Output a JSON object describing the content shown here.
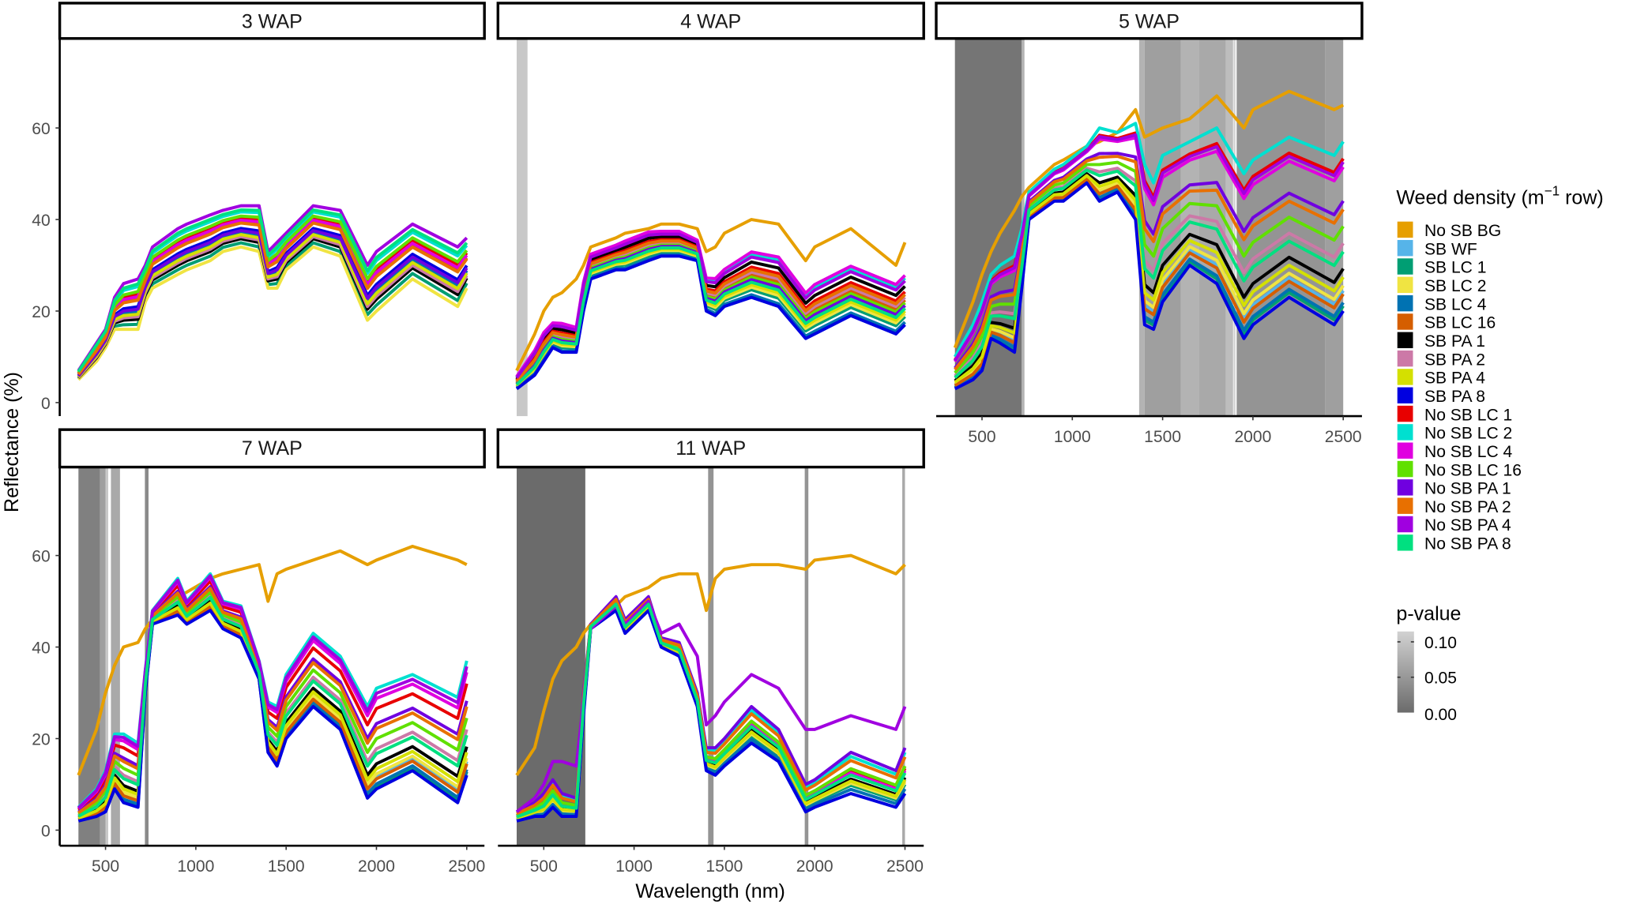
{
  "chart_data": {
    "type": "line",
    "title": "",
    "xlabel": "Wavelength (nm)",
    "ylabel": "Reflectance (%)",
    "xlim": [
      245,
      2605
    ],
    "ylim": [
      -3,
      79
    ],
    "x_ticks": [
      500,
      1000,
      1500,
      2000,
      2500
    ],
    "y_ticks": [
      0,
      20,
      40,
      60
    ],
    "grid": false,
    "legend_placement": "right",
    "legend": {
      "title_prefix": "Weed density (m",
      "title_sup": "−1",
      "title_suffix": " row)",
      "entries": [
        {
          "name": "No SB BG",
          "color": "#E69F00"
        },
        {
          "name": "SB WF",
          "color": "#56B4E9"
        },
        {
          "name": "SB LC 1",
          "color": "#009E73"
        },
        {
          "name": "SB LC 2",
          "color": "#F0E442"
        },
        {
          "name": "SB LC 4",
          "color": "#0072B2"
        },
        {
          "name": "SB LC 16",
          "color": "#D55E00"
        },
        {
          "name": "SB PA 1",
          "color": "#000000"
        },
        {
          "name": "SB PA 2",
          "color": "#CC79A7"
        },
        {
          "name": "SB PA 4",
          "color": "#D4E000"
        },
        {
          "name": "SB PA 8",
          "color": "#0000E0"
        },
        {
          "name": "No SB LC 1",
          "color": "#E80000"
        },
        {
          "name": "No SB LC 2",
          "color": "#00E0D0"
        },
        {
          "name": "No SB LC 4",
          "color": "#E000E0"
        },
        {
          "name": "No SB LC 16",
          "color": "#60E000"
        },
        {
          "name": "No SB PA 1",
          "color": "#7000E0"
        },
        {
          "name": "No SB PA 2",
          "color": "#E87000"
        },
        {
          "name": "No SB PA 4",
          "color": "#A000E0"
        },
        {
          "name": "No SB PA 8",
          "color": "#00E080"
        }
      ]
    },
    "pvalue_legend": {
      "title": "p-value",
      "labels": [
        "0.10",
        "0.05",
        "0.00"
      ],
      "range": [
        0,
        0.1
      ],
      "color_low": "#6b6b6b",
      "color_high": "#d2d2d2"
    },
    "wavelengths": [
      350,
      450,
      500,
      550,
      600,
      680,
      720,
      760,
      900,
      950,
      1080,
      1150,
      1250,
      1350,
      1400,
      1450,
      1500,
      1650,
      1800,
      1950,
      2000,
      2200,
      2450,
      2500
    ],
    "panels": [
      {
        "label": "3 WAP",
        "show_x_ticks": false,
        "bands": [],
        "envelope_low": [
          5,
          9,
          12,
          16,
          16,
          16,
          22,
          25,
          28,
          29,
          31,
          33,
          34,
          33,
          25,
          25,
          29,
          34,
          32,
          18,
          20,
          27,
          21,
          25
        ],
        "envelope_high": [
          7,
          13,
          16,
          23,
          26,
          27,
          30,
          34,
          38,
          39,
          41,
          42,
          43,
          43,
          33,
          35,
          37,
          43,
          42,
          30,
          33,
          39,
          34,
          36
        ],
        "explicit": {},
        "ranks": [
          0.6,
          0.3,
          0.1,
          0.0,
          0.35,
          0.6,
          0.2,
          0.25,
          0.3,
          0.45,
          0.7,
          0.85,
          0.65,
          0.75,
          0.4,
          0.58,
          1.0,
          0.9
        ]
      },
      {
        "label": "4 WAP",
        "show_x_ticks": false,
        "bands": [
          [
            350,
            410,
            0.09
          ]
        ],
        "envelope_low": [
          3,
          6,
          9,
          12,
          11,
          11,
          20,
          27,
          29,
          29,
          31,
          32,
          32,
          31,
          20,
          19,
          21,
          23,
          21,
          14,
          15,
          19,
          15,
          17
        ],
        "envelope_high": [
          6,
          12,
          16,
          18,
          18,
          17,
          27,
          33,
          35,
          36,
          38,
          38,
          38,
          36,
          28,
          28,
          30,
          34,
          33,
          25,
          27,
          31,
          27,
          29
        ],
        "explicit": {
          "No SB BG": [
            7,
            15,
            20,
            23,
            24,
            27,
            30,
            34,
            36,
            37,
            38,
            39,
            39,
            38,
            33,
            34,
            37,
            40,
            39,
            31,
            34,
            38,
            30,
            35
          ]
        },
        "ranks": [
          null,
          0.3,
          0.15,
          0.2,
          0.05,
          0.45,
          0.7,
          0.5,
          0.25,
          0.0,
          0.6,
          0.85,
          0.9,
          0.4,
          0.35,
          0.55,
          0.8,
          0.3
        ]
      },
      {
        "label": "5 WAP",
        "show_x_ticks": true,
        "bands": [
          [
            350,
            720,
            0.01
          ],
          [
            720,
            735,
            0.07
          ],
          [
            1370,
            1400,
            0.07
          ],
          [
            1400,
            1600,
            0.05
          ],
          [
            1600,
            1700,
            0.07
          ],
          [
            1700,
            1850,
            0.06
          ],
          [
            1850,
            1890,
            0.08
          ],
          [
            1893,
            1903,
            0.1
          ],
          [
            1910,
            2400,
            0.04
          ],
          [
            2400,
            2500,
            0.05
          ]
        ],
        "envelope_low": [
          3,
          5,
          7,
          14,
          13,
          11,
          25,
          40,
          44,
          44,
          48,
          44,
          46,
          40,
          17,
          16,
          22,
          30,
          26,
          14,
          17,
          23,
          17,
          20
        ],
        "envelope_high": [
          10,
          17,
          22,
          28,
          30,
          32,
          38,
          46,
          51,
          52,
          56,
          60,
          59,
          61,
          52,
          48,
          54,
          57,
          60,
          50,
          53,
          58,
          54,
          57
        ],
        "explicit": {
          "No SB BG": [
            12,
            22,
            28,
            33,
            37,
            42,
            45,
            47,
            52,
            53,
            56,
            57,
            59,
            64,
            58,
            59,
            60,
            62,
            67,
            60,
            64,
            68,
            64,
            65
          ]
        },
        "ranks": [
          null,
          0.12,
          0.03,
          0.15,
          0.05,
          0.1,
          0.25,
          0.4,
          0.2,
          0.0,
          0.9,
          1.0,
          0.85,
          0.5,
          0.65,
          0.6,
          0.88,
          0.35
        ]
      },
      {
        "label": "7 WAP",
        "show_x_ticks": true,
        "bands": [
          [
            350,
            470,
            0.02
          ],
          [
            470,
            500,
            0.05
          ],
          [
            500,
            515,
            0.09
          ],
          [
            530,
            580,
            0.06
          ],
          [
            718,
            738,
            0.03
          ]
        ],
        "envelope_low": [
          2,
          3,
          4,
          9,
          6,
          5,
          30,
          45,
          47,
          45,
          48,
          44,
          42,
          33,
          17,
          14,
          20,
          27,
          22,
          7,
          9,
          13,
          6,
          12
        ],
        "envelope_high": [
          5,
          9,
          13,
          21,
          21,
          19,
          35,
          48,
          55,
          50,
          56,
          50,
          49,
          37,
          28,
          27,
          34,
          43,
          38,
          27,
          31,
          34,
          29,
          37
        ],
        "explicit": {
          "No SB BG": [
            12,
            22,
            30,
            36,
            40,
            41,
            44,
            46,
            51,
            52,
            55,
            56,
            57,
            58,
            50,
            56,
            57,
            59,
            61,
            58,
            59,
            62,
            59,
            58
          ]
        },
        "ranks": [
          null,
          0.12,
          0.03,
          0.15,
          0.05,
          0.1,
          0.25,
          0.4,
          0.2,
          0.0,
          0.8,
          1.0,
          0.9,
          0.5,
          0.65,
          0.6,
          0.95,
          0.35
        ]
      },
      {
        "label": "11 WAP",
        "show_x_ticks": true,
        "bands": [
          [
            350,
            730,
            0.0
          ],
          [
            1410,
            1440,
            0.04
          ],
          [
            1945,
            1965,
            0.04
          ],
          [
            2485,
            2500,
            0.06
          ]
        ],
        "envelope_low": [
          2,
          3,
          3,
          5,
          3,
          3,
          25,
          44,
          48,
          43,
          48,
          40,
          38,
          27,
          13,
          12,
          14,
          19,
          15,
          4,
          5,
          8,
          5,
          8
        ],
        "envelope_high": [
          4,
          6,
          8,
          11,
          8,
          7,
          30,
          45,
          51,
          46,
          51,
          42,
          41,
          30,
          18,
          18,
          20,
          27,
          22,
          10,
          11,
          17,
          13,
          18
        ],
        "explicit": {
          "No SB BG": [
            12,
            18,
            26,
            33,
            37,
            40,
            43,
            45,
            49,
            51,
            53,
            55,
            56,
            56,
            48,
            55,
            57,
            58,
            58,
            57,
            59,
            60,
            56,
            58
          ],
          "No SB PA 4": [
            4,
            7,
            10,
            15,
            15,
            14,
            28,
            44,
            49,
            45,
            50,
            43,
            45,
            38,
            23,
            25,
            28,
            34,
            31,
            22,
            22,
            25,
            22,
            27
          ]
        },
        "ranks": [
          null,
          0.3,
          0.2,
          0.25,
          0.1,
          0.6,
          0.35,
          0.3,
          0.3,
          0.0,
          0.55,
          0.9,
          0.5,
          0.6,
          1.0,
          0.8,
          null,
          0.45
        ]
      }
    ]
  }
}
